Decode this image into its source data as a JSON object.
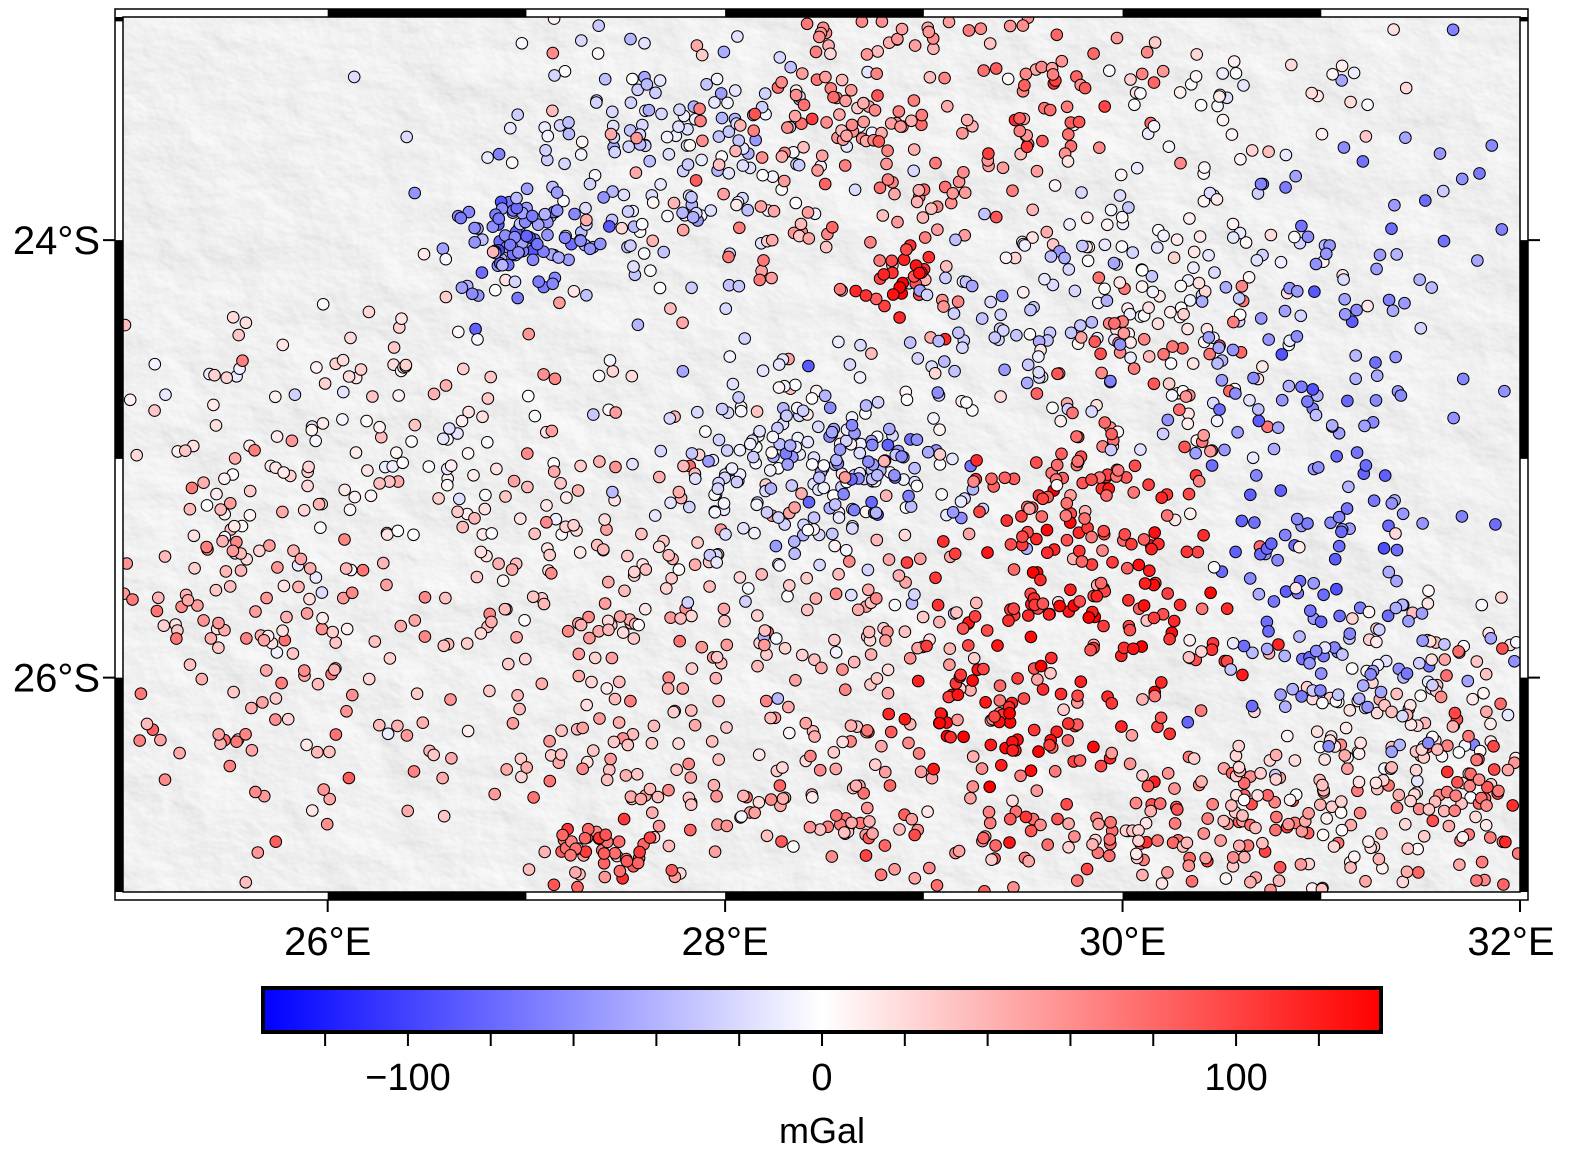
{
  "map": {
    "lon_range": [
      24.97,
      32.0
    ],
    "lat_range": [
      -26.98,
      -22.98
    ],
    "x_ticks": [
      {
        "value": 26,
        "label": "26°E"
      },
      {
        "value": 28,
        "label": "28°E"
      },
      {
        "value": 30,
        "label": "30°E"
      },
      {
        "value": 32,
        "label": "32°E"
      }
    ],
    "y_ticks": [
      {
        "value": -24,
        "label": "24°S"
      },
      {
        "value": -26,
        "label": "26°S"
      }
    ],
    "frame_interval_deg": 1,
    "basemap": "grayscale shaded relief",
    "marker": "circle with black outline"
  },
  "colorbar": {
    "range": [
      -135,
      135
    ],
    "colors": {
      "min": "#0000ff",
      "mid": "#ffffff",
      "max": "#ff0000"
    },
    "major_ticks": [
      {
        "value": -100,
        "label": "−100"
      },
      {
        "value": 0,
        "label": "0"
      },
      {
        "value": 100,
        "label": "100"
      }
    ],
    "minor_ticks": [
      -120,
      -80,
      -60,
      -40,
      -20,
      20,
      40,
      60,
      80,
      120
    ],
    "unit": "mGal"
  },
  "chart_data": {
    "type": "scatter",
    "title": "",
    "xlabel": "",
    "ylabel": "",
    "xlim": [
      24.97,
      32.0
    ],
    "ylim": [
      -26.98,
      -22.98
    ],
    "color_variable": "mGal",
    "clusters": [
      {
        "name": "",
        "lon": 27.7,
        "lat": -23.6,
        "n": 170,
        "sx": 0.45,
        "sy": 0.3,
        "value": -20
      },
      {
        "name": "",
        "lon": 26.95,
        "lat": -24.0,
        "n": 90,
        "sx": 0.2,
        "sy": 0.12,
        "value": -60
      },
      {
        "name": "",
        "lon": 28.7,
        "lat": -23.55,
        "n": 200,
        "sx": 0.55,
        "sy": 0.4,
        "value": 55
      },
      {
        "name": "",
        "lon": 28.88,
        "lat": -24.15,
        "n": 25,
        "sx": 0.09,
        "sy": 0.07,
        "value": 110
      },
      {
        "name": "",
        "lon": 26.1,
        "lat": -25.0,
        "n": 170,
        "sx": 0.6,
        "sy": 0.4,
        "value": 10
      },
      {
        "name": "",
        "lon": 25.55,
        "lat": -25.6,
        "n": 70,
        "sx": 0.35,
        "sy": 0.4,
        "value": 50
      },
      {
        "name": "",
        "lon": 26.3,
        "lat": -26.2,
        "n": 120,
        "sx": 0.85,
        "sy": 0.45,
        "value": 45
      },
      {
        "name": "",
        "lon": 27.5,
        "lat": -25.55,
        "n": 150,
        "sx": 0.45,
        "sy": 0.6,
        "value": 35
      },
      {
        "name": "",
        "lon": 28.4,
        "lat": -25.1,
        "n": 190,
        "sx": 0.4,
        "sy": 0.3,
        "value": -15
      },
      {
        "name": "",
        "lon": 28.7,
        "lat": -25.0,
        "n": 50,
        "sx": 0.25,
        "sy": 0.15,
        "value": -55
      },
      {
        "name": "",
        "lon": 28.9,
        "lat": -25.8,
        "n": 90,
        "sx": 0.55,
        "sy": 0.3,
        "value": 40
      },
      {
        "name": "",
        "lon": 29.8,
        "lat": -25.7,
        "n": 140,
        "sx": 0.35,
        "sy": 0.35,
        "value": 110
      },
      {
        "name": "",
        "lon": 29.7,
        "lat": -25.2,
        "n": 60,
        "sx": 0.3,
        "sy": 0.2,
        "value": 85
      },
      {
        "name": "",
        "lon": 29.8,
        "lat": -26.6,
        "n": 150,
        "sx": 0.9,
        "sy": 0.2,
        "value": 75
      },
      {
        "name": "",
        "lon": 29.3,
        "lat": -26.2,
        "n": 40,
        "sx": 0.2,
        "sy": 0.15,
        "value": 120
      },
      {
        "name": "",
        "lon": 28.2,
        "lat": -26.55,
        "n": 80,
        "sx": 0.5,
        "sy": 0.25,
        "value": 40
      },
      {
        "name": "",
        "lon": 27.4,
        "lat": -26.8,
        "n": 40,
        "sx": 0.15,
        "sy": 0.08,
        "value": 80
      },
      {
        "name": "",
        "lon": 30.2,
        "lat": -24.3,
        "n": 130,
        "sx": 0.4,
        "sy": 0.35,
        "value": 0
      },
      {
        "name": "",
        "lon": 30.2,
        "lat": -24.6,
        "n": 40,
        "sx": 0.3,
        "sy": 0.2,
        "value": 70
      },
      {
        "name": "",
        "lon": 29.5,
        "lat": -24.4,
        "n": 60,
        "sx": 0.3,
        "sy": 0.2,
        "value": -25
      },
      {
        "name": "",
        "lon": 31.0,
        "lat": -24.4,
        "n": 100,
        "sx": 0.45,
        "sy": 0.5,
        "value": -55
      },
      {
        "name": "",
        "lon": 31.0,
        "lat": -25.4,
        "n": 70,
        "sx": 0.3,
        "sy": 0.3,
        "value": -70
      },
      {
        "name": "",
        "lon": 31.3,
        "lat": -26.3,
        "n": 150,
        "sx": 0.4,
        "sy": 0.35,
        "value": 15
      },
      {
        "name": "",
        "lon": 31.2,
        "lat": -26.0,
        "n": 50,
        "sx": 0.3,
        "sy": 0.15,
        "value": -45
      },
      {
        "name": "",
        "lon": 31.8,
        "lat": -26.4,
        "n": 40,
        "sx": 0.12,
        "sy": 0.3,
        "value": 80
      },
      {
        "name": "",
        "lon": 30.7,
        "lat": -26.7,
        "n": 80,
        "sx": 0.5,
        "sy": 0.2,
        "value": 35
      },
      {
        "name": "",
        "lon": 29.7,
        "lat": -23.3,
        "n": 40,
        "sx": 0.25,
        "sy": 0.2,
        "value": 80
      },
      {
        "name": "",
        "lon": 30.6,
        "lat": -23.3,
        "n": 40,
        "sx": 0.4,
        "sy": 0.2,
        "value": 5
      }
    ]
  }
}
